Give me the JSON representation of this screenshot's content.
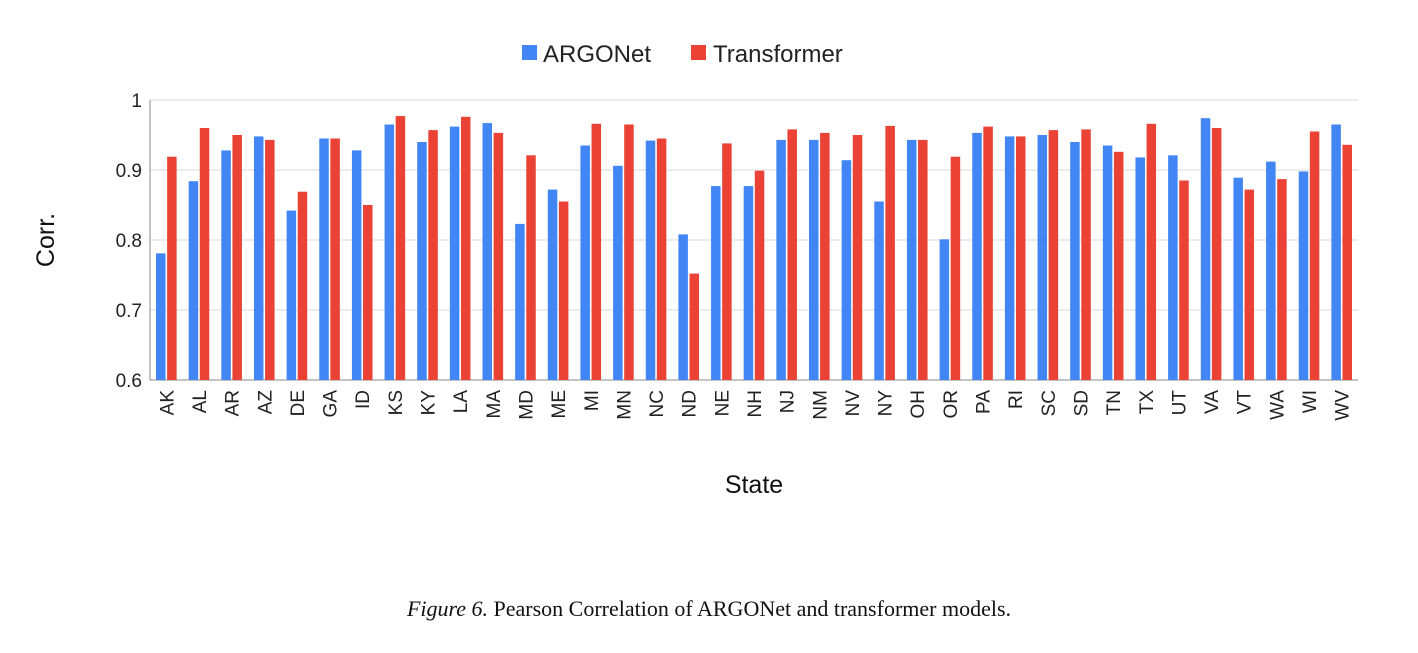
{
  "caption": {
    "label": "Figure 6.",
    "text": "Pearson Correlation of ARGONet and transformer models."
  },
  "colors": {
    "argonet": "#4285f4",
    "transformer": "#ea4335",
    "grid": "#d9d9d9",
    "axis": "#333333"
  },
  "chart_data": {
    "type": "bar",
    "xlabel": "State",
    "ylabel": "Corr.",
    "ylim": [
      0.6,
      1.0
    ],
    "yticks": [
      "0.6",
      "0.7",
      "0.8",
      "0.9",
      "1"
    ],
    "grid": true,
    "legend_position": "top-center",
    "categories": [
      "AK",
      "AL",
      "AR",
      "AZ",
      "DE",
      "GA",
      "ID",
      "KS",
      "KY",
      "LA",
      "MA",
      "MD",
      "ME",
      "MI",
      "MN",
      "NC",
      "ND",
      "NE",
      "NH",
      "NJ",
      "NM",
      "NV",
      "NY",
      "OH",
      "OR",
      "PA",
      "RI",
      "SC",
      "SD",
      "TN",
      "TX",
      "UT",
      "VA",
      "VT",
      "WA",
      "WI",
      "WV"
    ],
    "series": [
      {
        "name": "ARGONet",
        "values": [
          0.781,
          0.884,
          0.928,
          0.948,
          0.842,
          0.945,
          0.928,
          0.965,
          0.94,
          0.962,
          0.967,
          0.823,
          0.872,
          0.935,
          0.906,
          0.942,
          0.808,
          0.877,
          0.877,
          0.943,
          0.943,
          0.914,
          0.855,
          0.943,
          0.801,
          0.953,
          0.948,
          0.95,
          0.94,
          0.935,
          0.918,
          0.921,
          0.974,
          0.889,
          0.912,
          0.898,
          0.965
        ]
      },
      {
        "name": "Transformer",
        "values": [
          0.919,
          0.96,
          0.95,
          0.943,
          0.869,
          0.945,
          0.85,
          0.977,
          0.957,
          0.976,
          0.953,
          0.921,
          0.855,
          0.966,
          0.965,
          0.945,
          0.752,
          0.938,
          0.899,
          0.958,
          0.953,
          0.95,
          0.963,
          0.943,
          0.919,
          0.962,
          0.948,
          0.957,
          0.958,
          0.926,
          0.966,
          0.885,
          0.96,
          0.872,
          0.887,
          0.955,
          0.936
        ]
      }
    ]
  }
}
